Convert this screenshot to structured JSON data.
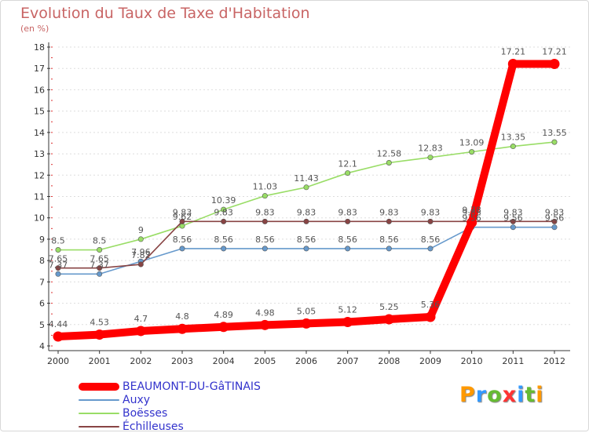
{
  "chart_data": {
    "type": "line",
    "title": "Evolution du Taux de Taxe d'Habitation",
    "subtitle": "(en %)",
    "xlabel": "",
    "ylabel": "",
    "ylim": [
      4,
      18
    ],
    "yticks": [
      "4",
      "5",
      "6",
      "7",
      "8",
      "9",
      "10",
      "11",
      "12",
      "13",
      "14",
      "15",
      "16",
      "17",
      "18"
    ],
    "x": [
      "2000",
      "2001",
      "2002",
      "2003",
      "2004",
      "2005",
      "2006",
      "2007",
      "2008",
      "2009",
      "2010",
      "2011",
      "2012"
    ],
    "grid": "horizontal dashed",
    "legend_position": "bottom-left",
    "series": [
      {
        "name": "BEAUMONT-DU-GâTINAIS",
        "color": "#ff0000",
        "values": [
          4.44,
          4.53,
          4.7,
          4.8,
          4.89,
          4.98,
          5.05,
          5.12,
          5.25,
          5.36,
          9.78,
          17.21,
          17.21
        ],
        "labels": [
          "4.44",
          "4.53",
          "4.7",
          "4.8",
          "4.89",
          "4.98",
          "5.05",
          "5.12",
          "5.25",
          "5.36",
          "9.78",
          "17.21",
          "17.21"
        ]
      },
      {
        "name": "Auxy",
        "color": "#6699cc",
        "values": [
          7.37,
          7.37,
          7.96,
          8.56,
          8.56,
          8.56,
          8.56,
          8.56,
          8.56,
          8.56,
          9.56,
          9.56,
          9.56
        ],
        "labels": [
          "7.37",
          "7.37",
          "7.96",
          "8.56",
          "8.56",
          "8.56",
          "8.56",
          "8.56",
          "8.56",
          "8.56",
          "9.56",
          "9.56",
          "9.56"
        ]
      },
      {
        "name": "Boësses",
        "color": "#99dd66",
        "values": [
          8.5,
          8.5,
          9,
          9.62,
          10.39,
          11.03,
          11.43,
          12.1,
          12.58,
          12.83,
          13.09,
          13.35,
          13.55
        ],
        "labels": [
          "8.5",
          "8.5",
          "9",
          "9.62",
          "10.39",
          "11.03",
          "11.43",
          "12.1",
          "12.58",
          "12.83",
          "13.09",
          "13.35",
          "13.55"
        ]
      },
      {
        "name": "Échilleuses",
        "color": "#884444",
        "values": [
          7.65,
          7.65,
          7.82,
          9.83,
          9.83,
          9.83,
          9.83,
          9.83,
          9.83,
          9.83,
          9.83,
          9.83,
          9.83
        ],
        "labels": [
          "7.65",
          "7.65",
          "7.82",
          "9.83",
          "9.83",
          "9.83",
          "9.83",
          "9.83",
          "9.83",
          "9.83",
          "9.83",
          "9.83",
          "9.83"
        ]
      }
    ]
  },
  "logo": {
    "text": "Proxiti",
    "colors": [
      "#ff9900",
      "#3399ff",
      "#66bb33",
      "#ff3333",
      "#3399ff",
      "#66bb33",
      "#ff9900"
    ]
  }
}
